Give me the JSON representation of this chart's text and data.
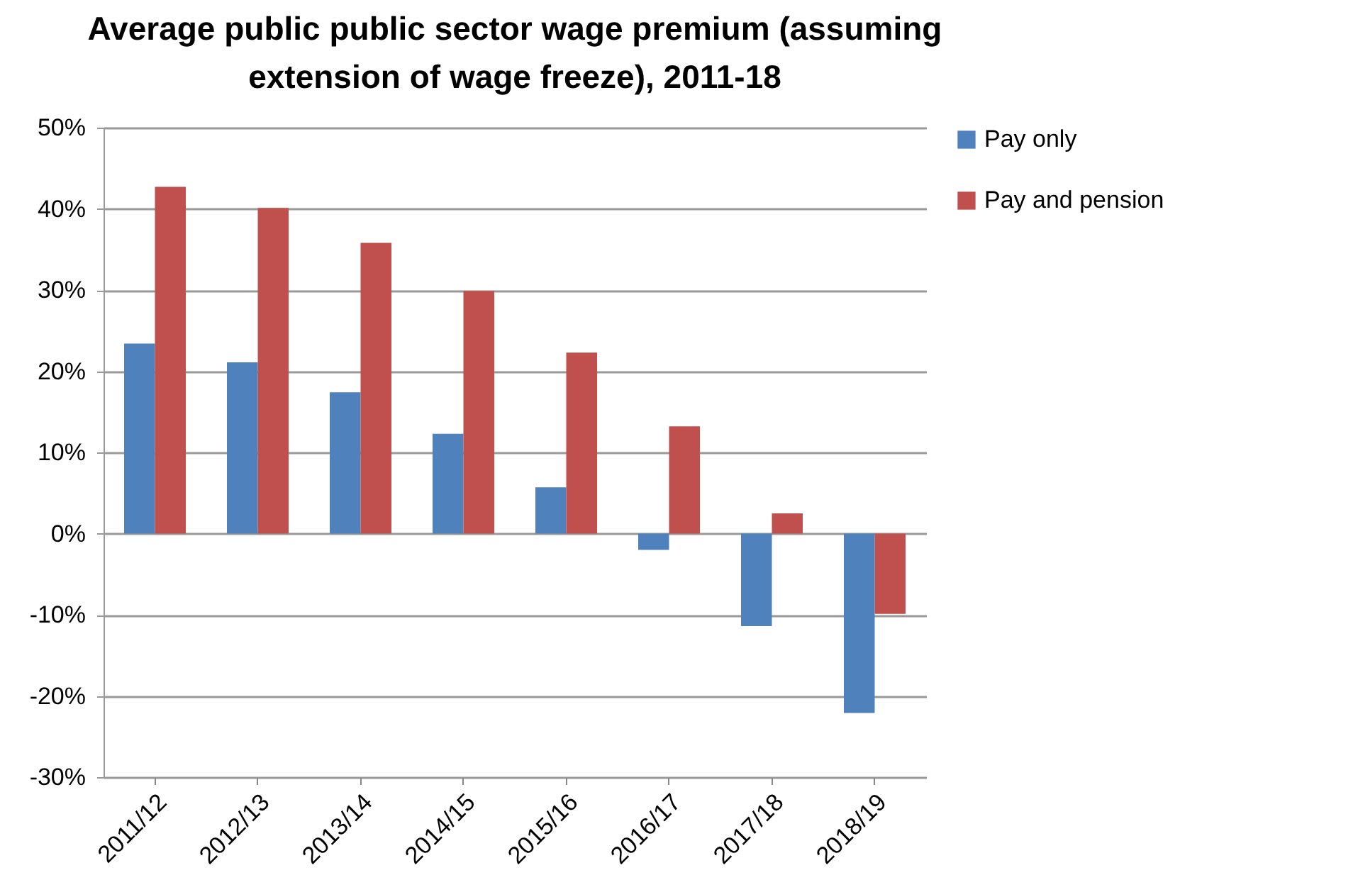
{
  "chart_data": {
    "type": "bar",
    "title": "Average public public sector wage premium (assuming extension of wage freeze), 2011-18",
    "categories": [
      "2011/12",
      "2012/13",
      "2013/14",
      "2014/15",
      "2015/16",
      "2016/17",
      "2017/18",
      "2018/19"
    ],
    "series": [
      {
        "name": "Pay only",
        "color": "#4f81bd",
        "values": [
          23.4,
          21.1,
          17.4,
          12.3,
          5.7,
          -2.0,
          -11.4,
          -22.1
        ]
      },
      {
        "name": "Pay and pension",
        "color": "#c0504d",
        "values": [
          42.7,
          40.1,
          35.8,
          29.9,
          22.3,
          13.2,
          2.5,
          -9.9
        ]
      }
    ],
    "ylim": [
      -30,
      50
    ],
    "yticks": [
      {
        "value": -30,
        "label": "-30%"
      },
      {
        "value": -20,
        "label": "-20%"
      },
      {
        "value": -10,
        "label": "-10%"
      },
      {
        "value": 0,
        "label": "0%"
      },
      {
        "value": 10,
        "label": "10%"
      },
      {
        "value": 20,
        "label": "20%"
      },
      {
        "value": 30,
        "label": "30%"
      },
      {
        "value": 40,
        "label": "40%"
      },
      {
        "value": 50,
        "label": "50%"
      }
    ],
    "grid": "y",
    "legend": "right"
  }
}
